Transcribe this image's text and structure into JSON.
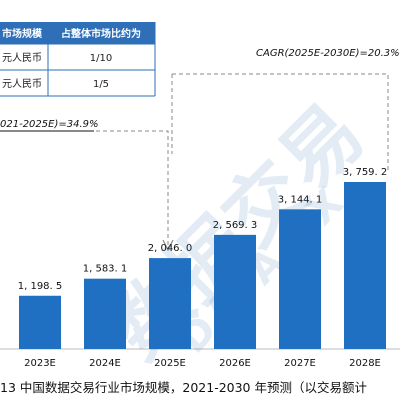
{
  "table": {
    "header": [
      "市场规模",
      "占整体市场比约为"
    ],
    "rows": [
      [
        "元人民币",
        "1/10"
      ],
      [
        "元人民币",
        "1/5"
      ]
    ],
    "header_bg": "#2e6fb8"
  },
  "cagr_right": "CAGR(2025E-2030E)=20.3%",
  "cagr_left": "021-2025E)=34.9%",
  "caption": "13  中国数据交易行业市场规模，2021-2030 年预测（以交易额计",
  "watermark": {
    "cn": "数据交易",
    "en": "DATA EX"
  },
  "colors": {
    "bar": "#1f6fc3",
    "dashed": "#8a8a8a",
    "axis": "#bdbdbd",
    "text": "#111111"
  },
  "chart_data": {
    "type": "bar",
    "categories": [
      "2023E",
      "2024E",
      "2025E",
      "2026E",
      "2027E",
      "2028E"
    ],
    "values": [
      1198.5,
      1583.1,
      2046.0,
      2569.3,
      3144.1,
      3759.2
    ],
    "value_labels": [
      "1, 198. 5",
      "1, 583. 1",
      "2, 046. 0",
      "2, 569. 3",
      "3, 144. 1",
      "3, 759. 2"
    ],
    "title": "",
    "xlabel": "",
    "ylabel": "",
    "ylim": [
      0,
      3759.2
    ]
  }
}
